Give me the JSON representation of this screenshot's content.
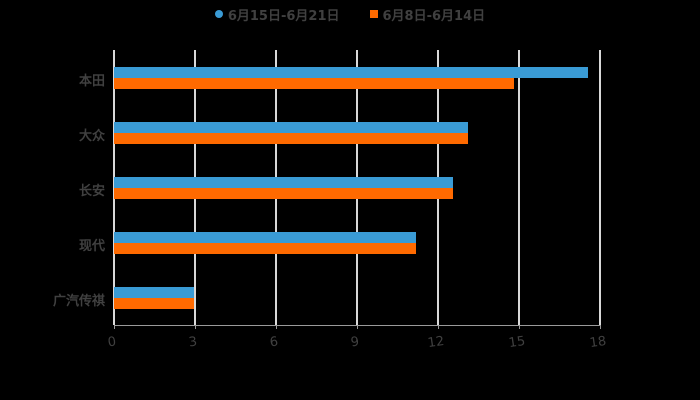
{
  "chart_data": {
    "type": "bar",
    "orientation": "horizontal",
    "title": "",
    "xlabel": "",
    "ylabel": "",
    "categories": [
      "本田",
      "大众",
      "长安",
      "现代",
      "广汽传祺"
    ],
    "series": [
      {
        "name": "6月15日-6月21日",
        "color": "#3a9bd5",
        "values": [
          17.55,
          13.1,
          12.55,
          11.2,
          2.95
        ]
      },
      {
        "name": "6月8日-6月14日",
        "color": "#ff6a00",
        "values": [
          14.8,
          13.1,
          12.55,
          11.2,
          2.95
        ]
      }
    ],
    "xlim": [
      0,
      18
    ],
    "xticks": [
      "0",
      "3",
      "6",
      "9",
      "12",
      "15",
      "18"
    ],
    "grid": "vertical",
    "legend_position": "top"
  },
  "legend": {
    "items": [
      {
        "label": "6月15日-6月21日",
        "color": "#3a9bd5",
        "shape": "circle"
      },
      {
        "label": "6月8日-6月14日",
        "color": "#ff6a00",
        "shape": "square"
      }
    ]
  }
}
